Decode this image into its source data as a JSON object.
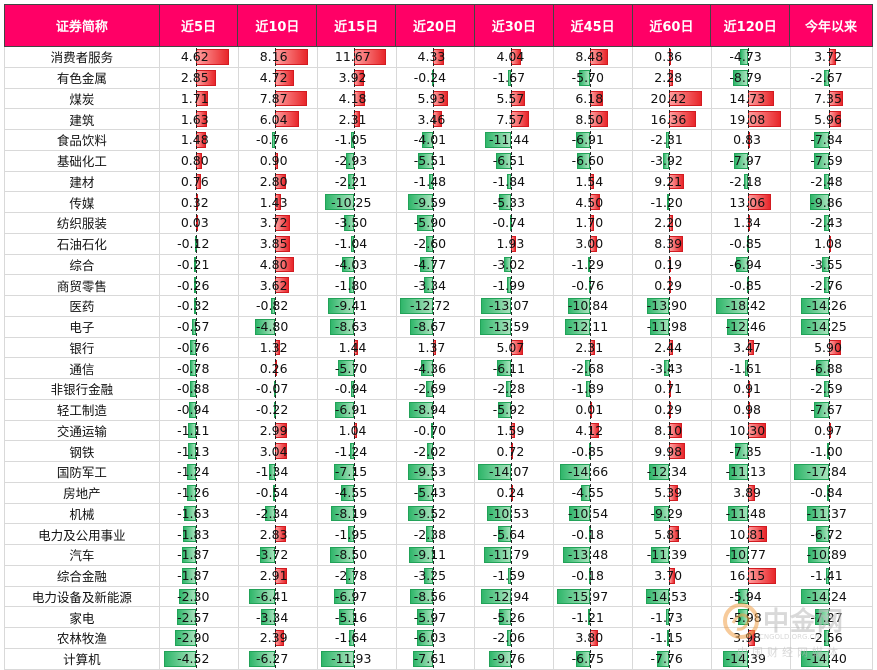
{
  "chart_data": {
    "type": "table",
    "columns": [
      "证券简称",
      "近5日",
      "近10日",
      "近15日",
      "近20日",
      "近30日",
      "近45日",
      "近60日",
      "近120日",
      "今年以来"
    ],
    "rows": [
      {
        "name": "消费者服务",
        "values": [
          4.62,
          8.16,
          11.67,
          4.33,
          4.04,
          8.48,
          0.36,
          -4.73,
          3.72
        ]
      },
      {
        "name": "有色金属",
        "values": [
          2.85,
          4.72,
          3.92,
          -0.24,
          -1.67,
          -5.7,
          2.28,
          -8.79,
          -2.67
        ]
      },
      {
        "name": "煤炭",
        "values": [
          1.71,
          7.87,
          4.18,
          5.93,
          5.57,
          6.18,
          20.42,
          14.73,
          7.35
        ]
      },
      {
        "name": "建筑",
        "values": [
          1.63,
          6.04,
          2.31,
          3.46,
          7.57,
          8.5,
          16.36,
          19.08,
          5.96
        ]
      },
      {
        "name": "食品饮料",
        "values": [
          1.48,
          -0.76,
          -1.05,
          -4.01,
          -11.44,
          -6.91,
          -2.31,
          0.83,
          -7.84
        ]
      },
      {
        "name": "基础化工",
        "values": [
          0.8,
          0.9,
          -2.93,
          -5.51,
          -6.51,
          -6.6,
          -3.92,
          -7.97,
          -7.59
        ]
      },
      {
        "name": "建材",
        "values": [
          0.76,
          2.8,
          -2.21,
          -1.48,
          -1.84,
          1.54,
          9.21,
          -2.18,
          -2.48
        ]
      },
      {
        "name": "传媒",
        "values": [
          0.32,
          1.43,
          -10.25,
          -9.59,
          -5.33,
          4.5,
          -1.2,
          13.06,
          -9.86
        ]
      },
      {
        "name": "纺织服装",
        "values": [
          0.03,
          3.72,
          -3.5,
          -5.9,
          -0.74,
          1.7,
          2.2,
          1.34,
          -2.43
        ]
      },
      {
        "name": "石油石化",
        "values": [
          -0.12,
          3.85,
          -1.04,
          -2.6,
          1.93,
          3.0,
          8.39,
          -0.85,
          1.08
        ]
      },
      {
        "name": "综合",
        "values": [
          -0.21,
          4.8,
          -4.03,
          -4.77,
          -3.02,
          -1.29,
          0.19,
          -6.94,
          -3.55
        ]
      },
      {
        "name": "商贸零售",
        "values": [
          -0.26,
          3.62,
          -1.8,
          -3.34,
          -1.99,
          -0.76,
          0.29,
          -0.85,
          -2.76
        ]
      },
      {
        "name": "医药",
        "values": [
          -0.32,
          -0.82,
          -9.41,
          -12.72,
          -13.07,
          -10.84,
          -13.9,
          -18.42,
          -14.26
        ]
      },
      {
        "name": "电子",
        "values": [
          -0.57,
          -4.8,
          -8.63,
          -8.67,
          -13.59,
          -12.11,
          -11.98,
          -12.46,
          -14.25
        ]
      },
      {
        "name": "银行",
        "values": [
          -0.76,
          1.32,
          1.44,
          1.37,
          5.07,
          2.31,
          2.44,
          3.47,
          5.9
        ]
      },
      {
        "name": "通信",
        "values": [
          -0.78,
          0.26,
          -5.7,
          -4.36,
          -6.11,
          -2.68,
          -3.43,
          -1.61,
          -6.88
        ]
      },
      {
        "name": "非银行金融",
        "values": [
          -0.88,
          -0.07,
          -0.94,
          -2.69,
          -2.28,
          -1.89,
          0.71,
          0.91,
          -2.59
        ]
      },
      {
        "name": "轻工制造",
        "values": [
          -0.94,
          -0.22,
          -6.91,
          -8.94,
          -5.92,
          0.01,
          0.29,
          0.98,
          -7.67
        ]
      },
      {
        "name": "交通运输",
        "values": [
          -1.11,
          2.99,
          1.04,
          -0.7,
          1.59,
          4.12,
          8.1,
          10.3,
          0.97
        ]
      },
      {
        "name": "钢铁",
        "values": [
          -1.13,
          3.04,
          -1.24,
          -2.02,
          0.72,
          -0.85,
          9.98,
          -7.35,
          -1.0
        ]
      },
      {
        "name": "国防军工",
        "values": [
          -1.24,
          -1.34,
          -7.15,
          -9.53,
          -14.07,
          -14.66,
          -12.34,
          -11.13,
          -17.84
        ]
      },
      {
        "name": "房地产",
        "values": [
          -1.26,
          -0.54,
          -4.55,
          -5.43,
          0.24,
          -4.55,
          5.39,
          3.89,
          -0.84
        ]
      },
      {
        "name": "机械",
        "values": [
          -1.63,
          -2.34,
          -8.19,
          -9.52,
          -10.53,
          -10.54,
          -9.29,
          -11.48,
          -11.37
        ]
      },
      {
        "name": "电力及公用事业",
        "values": [
          -1.83,
          2.83,
          -1.95,
          -2.38,
          -5.64,
          -0.18,
          5.81,
          10.81,
          -6.72
        ]
      },
      {
        "name": "汽车",
        "values": [
          -1.87,
          -3.72,
          -8.5,
          -9.11,
          -11.79,
          -13.48,
          -11.39,
          -10.77,
          -10.89
        ]
      },
      {
        "name": "综合金融",
        "values": [
          -1.87,
          2.91,
          -2.78,
          -3.25,
          -1.59,
          -0.18,
          3.7,
          16.15,
          -1.41
        ]
      },
      {
        "name": "电力设备及新能源",
        "values": [
          -2.3,
          -6.41,
          -6.97,
          -8.56,
          -12.94,
          -15.97,
          -14.53,
          -5.94,
          -14.24
        ]
      },
      {
        "name": "家电",
        "values": [
          -2.57,
          -3.34,
          -5.16,
          -5.97,
          -5.26,
          -1.21,
          -1.73,
          -5.98,
          -7.27
        ]
      },
      {
        "name": "农林牧渔",
        "values": [
          -2.9,
          2.39,
          -1.64,
          -6.03,
          -2.06,
          3.8,
          -1.15,
          3.98,
          -2.56
        ]
      },
      {
        "name": "计算机",
        "values": [
          -4.52,
          -6.27,
          -11.93,
          -7.61,
          -9.76,
          -6.75,
          -7.76,
          -14.39,
          -14.4
        ]
      }
    ]
  },
  "colors": {
    "header_bg": "#ff0066",
    "positive_bar": "#e8262a",
    "negative_bar": "#2fb66a"
  },
  "watermark": {
    "title": "中金网",
    "url": "CNGOLD.ORG.CN",
    "subtitle": "中国财经网媒体"
  }
}
